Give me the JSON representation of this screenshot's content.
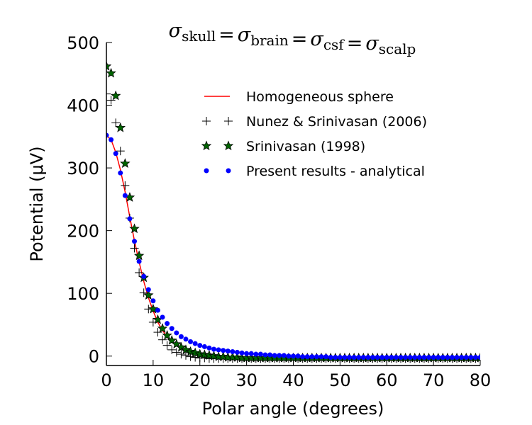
{
  "chart_data": {
    "type": "line",
    "title": {
      "sigma": "σ",
      "subscripts": [
        "skull",
        "brain",
        "csf",
        "scalp"
      ],
      "equals": "="
    },
    "xlabel": "Polar angle (degrees)",
    "ylabel": "Potential (μV)",
    "xlim": [
      0,
      80
    ],
    "ylim": [
      -15,
      500
    ],
    "xticks": [
      0,
      10,
      20,
      30,
      40,
      50,
      60,
      70,
      80
    ],
    "yticks": [
      0,
      100,
      200,
      300,
      400,
      500
    ],
    "grid": false,
    "legend_position": "top-right",
    "colors": {
      "homogeneous": "#ff0000",
      "nunez": "#000000",
      "srinivasan": "#006400",
      "present": "#0000ff"
    },
    "series": [
      {
        "name": "Homogeneous sphere",
        "style": "line",
        "x": [
          0,
          1,
          2,
          3,
          4,
          5,
          6,
          7,
          8,
          9,
          10,
          11,
          12,
          13,
          14,
          15,
          16,
          17,
          18,
          19,
          20,
          22,
          24,
          26,
          28,
          30,
          35,
          40,
          45,
          50,
          55,
          60,
          65,
          70,
          75,
          80
        ],
        "y": [
          352,
          345,
          325,
          297,
          262,
          222,
          184,
          150,
          119,
          93,
          72,
          54,
          41,
          31,
          23,
          17,
          12,
          8,
          5,
          3,
          2,
          0,
          -1,
          -2,
          -2,
          -2,
          -3,
          -3,
          -3,
          -3,
          -3,
          -3,
          -3,
          -3,
          -3,
          -3
        ]
      },
      {
        "name": "Nunez & Srinivasan (2006)",
        "style": "plus",
        "x": [
          0,
          1,
          2,
          3,
          4,
          5,
          6,
          7,
          8,
          9,
          10,
          11,
          12,
          13,
          14,
          15,
          16,
          17,
          18,
          19,
          20,
          21,
          22,
          23,
          24,
          25,
          26,
          27,
          28,
          29,
          30,
          31,
          32,
          33,
          34,
          35,
          36,
          37,
          38,
          39,
          40,
          41,
          42,
          43,
          44,
          45,
          46,
          47,
          48,
          49,
          50,
          51,
          52,
          53,
          54,
          55,
          56,
          57,
          58,
          59,
          60,
          61,
          62,
          63,
          64,
          65,
          66,
          67,
          68,
          69,
          70,
          71,
          72,
          73,
          74,
          75,
          76,
          77,
          78,
          79,
          80
        ],
        "y": [
          418,
          408,
          372,
          327,
          272,
          220,
          172,
          133,
          101,
          75,
          54,
          38,
          26,
          17,
          10,
          6,
          3,
          1,
          -1,
          -2,
          -3,
          -3,
          -4,
          -4,
          -4,
          -4,
          -4,
          -4,
          -4,
          -4,
          -4,
          -4,
          -4,
          -4,
          -4,
          -4,
          -4,
          -4,
          -4,
          -4,
          -4,
          -4,
          -4,
          -4,
          -4,
          -4,
          -4,
          -4,
          -4,
          -4,
          -4,
          -4,
          -4,
          -4,
          -4,
          -4,
          -4,
          -4,
          -4,
          -4,
          -4,
          -4,
          -4,
          -4,
          -4,
          -4,
          -4,
          -4,
          -4,
          -4,
          -4,
          -4,
          -4,
          -4,
          -4,
          -4,
          -4,
          -4,
          -4,
          -4,
          -4
        ]
      },
      {
        "name": "Srinivasan (1998)",
        "style": "star",
        "x": [
          0,
          1,
          2,
          3,
          4,
          5,
          6,
          7,
          8,
          9,
          10,
          11,
          12,
          13,
          14,
          15,
          16,
          17,
          18,
          19,
          20,
          21,
          22,
          23,
          24,
          25,
          26,
          27,
          28,
          29,
          30,
          31,
          32,
          33,
          34,
          35,
          36,
          37,
          38,
          39,
          40,
          41,
          42,
          43,
          44,
          45,
          46,
          47,
          48,
          49,
          50,
          51,
          52,
          53,
          54,
          55,
          56,
          57,
          58,
          59,
          60,
          61,
          62,
          63,
          64,
          65,
          66,
          67,
          68,
          69,
          70,
          71,
          72,
          73,
          74,
          75,
          76,
          77,
          78,
          79,
          80
        ],
        "y": [
          462,
          451,
          415,
          364,
          307,
          253,
          203,
          160,
          125,
          97,
          75,
          58,
          44,
          33,
          25,
          19,
          14,
          10,
          7,
          5,
          3,
          2,
          1,
          0,
          -1,
          -1,
          -2,
          -2,
          -2,
          -3,
          -3,
          -3,
          -3,
          -3,
          -3,
          -3,
          -3,
          -3,
          -3,
          -3,
          -3,
          -3,
          -3,
          -3,
          -3,
          -3,
          -3,
          -3,
          -3,
          -3,
          -3,
          -3,
          -3,
          -3,
          -3,
          -3,
          -3,
          -3,
          -3,
          -3,
          -3,
          -3,
          -3,
          -3,
          -3,
          -3,
          -3,
          -3,
          -3,
          -3,
          -3,
          -3,
          -3,
          -3,
          -3,
          -3,
          -3,
          -3,
          -3,
          -3,
          -3
        ]
      },
      {
        "name": "Present results - analytical",
        "style": "dot",
        "x": [
          0,
          1,
          2,
          3,
          4,
          5,
          6,
          7,
          8,
          9,
          10,
          11,
          12,
          13,
          14,
          15,
          16,
          17,
          18,
          19,
          20,
          21,
          22,
          23,
          24,
          25,
          26,
          27,
          28,
          29,
          30,
          31,
          32,
          33,
          34,
          35,
          36,
          37,
          38,
          39,
          40,
          41,
          42,
          43,
          44,
          45,
          46,
          47,
          48,
          49,
          50,
          51,
          52,
          53,
          54,
          55,
          56,
          57,
          58,
          59,
          60,
          61,
          62,
          63,
          64,
          65,
          66,
          67,
          68,
          69,
          70,
          71,
          72,
          73,
          74,
          75,
          76,
          77,
          78,
          79,
          80
        ],
        "y": [
          352,
          345,
          323,
          292,
          256,
          219,
          183,
          151,
          127,
          106,
          88,
          73,
          62,
          52,
          44,
          37,
          31,
          27,
          23,
          20,
          17,
          15,
          13,
          11,
          10,
          9,
          8,
          7,
          6,
          5,
          4,
          4,
          3,
          3,
          2,
          2,
          1,
          1,
          1,
          0,
          0,
          0,
          -1,
          -1,
          -1,
          -1,
          -1,
          -1,
          -2,
          -2,
          -2,
          -2,
          -2,
          -2,
          -2,
          -2,
          -2,
          -2,
          -2,
          -2,
          -2,
          -2,
          -2,
          -2,
          -2,
          -2,
          -2,
          -2,
          -2,
          -2,
          -2,
          -2,
          -2,
          -2,
          -2,
          -2,
          -2,
          -2,
          -2,
          -2,
          -2
        ]
      }
    ]
  }
}
